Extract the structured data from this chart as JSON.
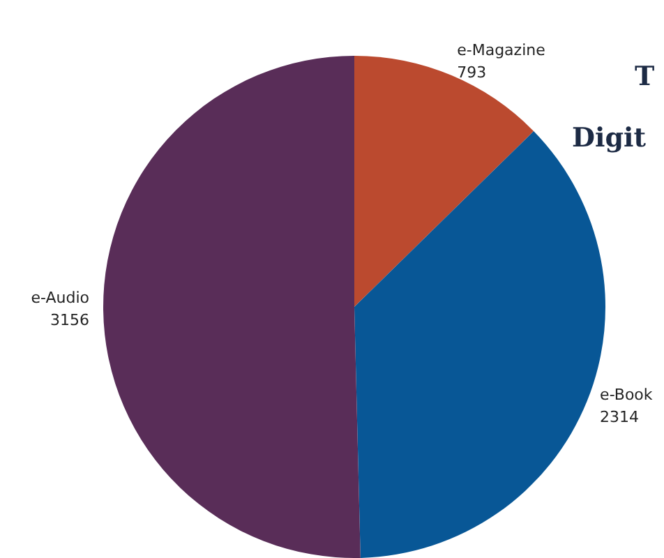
{
  "chart_data": {
    "type": "pie",
    "annotations": [
      "T",
      "Digit"
    ],
    "categories": [
      "e-Magazine",
      "e-Book",
      "e-Audio"
    ],
    "values": [
      793,
      2314,
      3156
    ],
    "colors": [
      "#bb4a2f",
      "#085796",
      "#592d58"
    ],
    "data_labels": true,
    "legend": false
  }
}
